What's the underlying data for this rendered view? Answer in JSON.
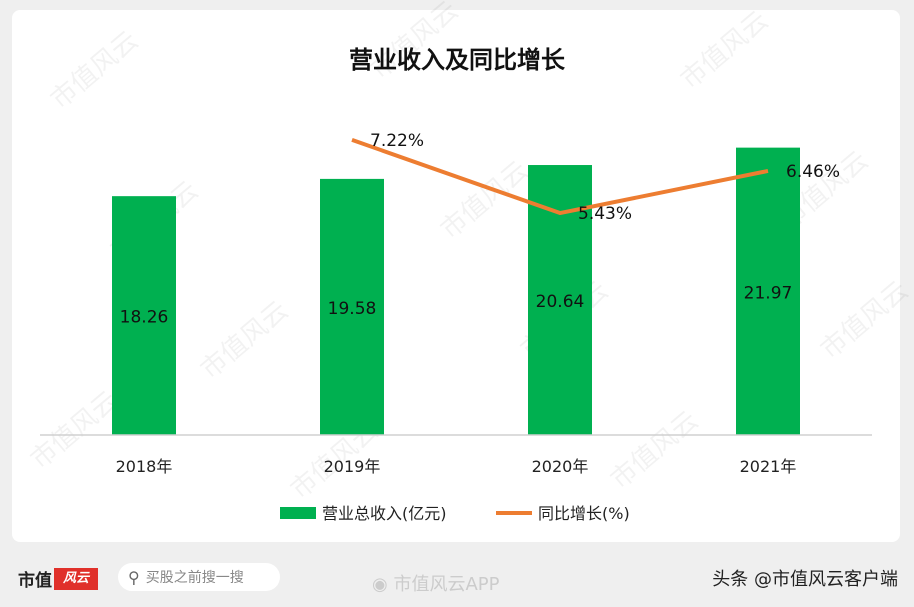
{
  "chart_data": {
    "type": "bar+line",
    "title": "营业收入及同比增长",
    "categories": [
      "2018年",
      "2019年",
      "2020年",
      "2021年"
    ],
    "series": [
      {
        "name": "营业总收入(亿元)",
        "type": "bar",
        "axis": "left",
        "color": "#00b050",
        "values": [
          18.26,
          19.58,
          20.64,
          21.97
        ],
        "labels": [
          "18.26",
          "19.58",
          "20.64",
          "21.97"
        ]
      },
      {
        "name": "同比增长(%)",
        "type": "line",
        "axis": "right",
        "color": "#ed7d31",
        "values": [
          null,
          7.22,
          5.43,
          6.46
        ],
        "labels": [
          "",
          "7.22%",
          "5.43%",
          "6.46%"
        ]
      }
    ],
    "ylim": [
      0,
      25
    ],
    "y2lim": [
      0,
      8
    ],
    "grid": false,
    "legend": "bottom"
  },
  "watermark": "市值风云",
  "footer": {
    "logo_text": "市值",
    "logo_badge": "风云",
    "search_placeholder": "买股之前搜一搜",
    "weibo": "市值风云APP",
    "toutiao": "头条 @市值风云客户端"
  }
}
